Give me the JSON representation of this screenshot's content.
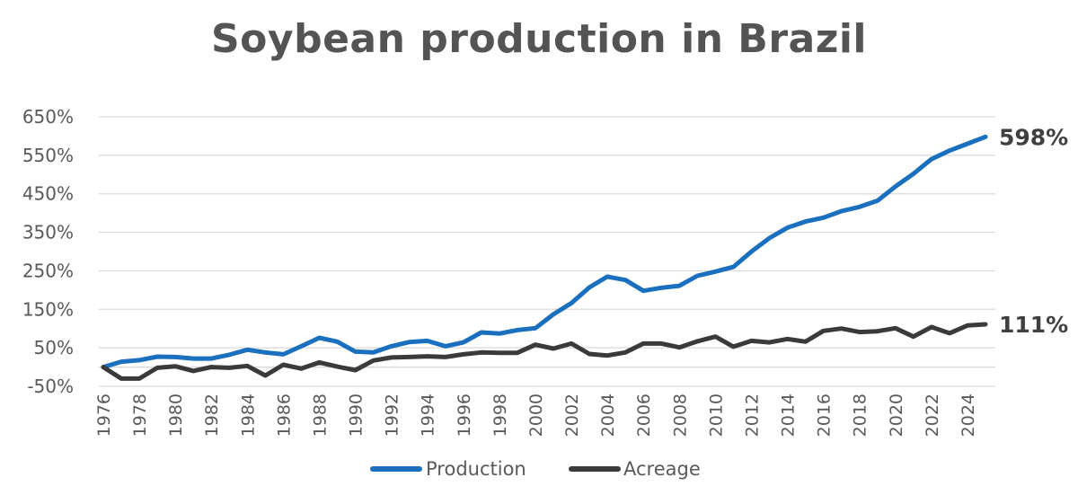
{
  "chart_data": {
    "type": "line",
    "title": "Soybean production in Brazil",
    "xlabel": "",
    "ylabel": "",
    "x": [
      1976,
      1977,
      1978,
      1979,
      1980,
      1981,
      1982,
      1983,
      1984,
      1985,
      1986,
      1987,
      1988,
      1989,
      1990,
      1991,
      1992,
      1993,
      1994,
      1995,
      1996,
      1997,
      1998,
      1999,
      2000,
      2001,
      2002,
      2003,
      2004,
      2005,
      2006,
      2007,
      2008,
      2009,
      2010,
      2011,
      2012,
      2013,
      2014,
      2015,
      2016,
      2017,
      2018,
      2019,
      2020,
      2021,
      2022,
      2023,
      2024,
      2025
    ],
    "x_tick_labels": [
      "1976",
      "1978",
      "1980",
      "1982",
      "1984",
      "1986",
      "1988",
      "1990",
      "1992",
      "1994",
      "1996",
      "1998",
      "2000",
      "2002",
      "2004",
      "2006",
      "2008",
      "2010",
      "2012",
      "2014",
      "2016",
      "2018",
      "2020",
      "2022",
      "2024"
    ],
    "y_tick_labels": [
      "-50%",
      "50%",
      "150%",
      "250%",
      "350%",
      "450%",
      "550%",
      "650%"
    ],
    "ylim": [
      -50,
      650
    ],
    "grid": true,
    "legend": "bottom",
    "series": [
      {
        "name": "Production",
        "color": "#1a6fbf",
        "end_label": "598%",
        "values": [
          0,
          14,
          18,
          27,
          26,
          22,
          22,
          32,
          45,
          38,
          33,
          54,
          76,
          66,
          40,
          38,
          54,
          65,
          68,
          54,
          64,
          90,
          87,
          96,
          101,
          137,
          166,
          207,
          235,
          226,
          198,
          206,
          211,
          237,
          248,
          260,
          300,
          335,
          362,
          378,
          388,
          405,
          416,
          432,
          469,
          502,
          540,
          562,
          580,
          598
        ]
      },
      {
        "name": "Acreage",
        "color": "#3a3a3a",
        "end_label": "111%",
        "values": [
          0,
          -30,
          -30,
          -2,
          2,
          -10,
          0,
          -2,
          3,
          -22,
          6,
          -4,
          12,
          1,
          -8,
          17,
          25,
          26,
          28,
          26,
          33,
          38,
          37,
          37,
          58,
          48,
          61,
          34,
          30,
          38,
          61,
          61,
          51,
          67,
          79,
          53,
          68,
          64,
          73,
          66,
          94,
          100,
          91,
          93,
          101,
          79,
          104,
          88,
          108,
          111
        ]
      }
    ]
  }
}
